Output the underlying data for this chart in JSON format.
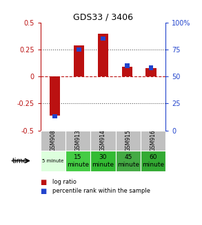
{
  "title": "GDS33 / 3406",
  "samples": [
    "GSM908",
    "GSM913",
    "GSM914",
    "GSM915",
    "GSM916"
  ],
  "log_ratios": [
    -0.36,
    0.285,
    0.395,
    0.09,
    0.08
  ],
  "percentile_ranks": [
    13,
    75,
    85,
    60,
    58
  ],
  "ylim_left": [
    -0.5,
    0.5
  ],
  "ylim_right": [
    0,
    100
  ],
  "yticks_left": [
    -0.5,
    -0.25,
    0,
    0.25,
    0.5
  ],
  "yticks_right": [
    0,
    25,
    50,
    75,
    100
  ],
  "red_color": "#bb1111",
  "blue_color": "#2244cc",
  "time_colors": [
    "#ddffdd",
    "#44cc44",
    "#33bb33",
    "#44aa44",
    "#33aa33"
  ],
  "time_labels": [
    "5 minute",
    "15\nminute",
    "30\nminute",
    "45\nminute",
    "60\nminute"
  ],
  "time_small_fontsize": [
    true,
    false,
    false,
    false,
    false
  ]
}
